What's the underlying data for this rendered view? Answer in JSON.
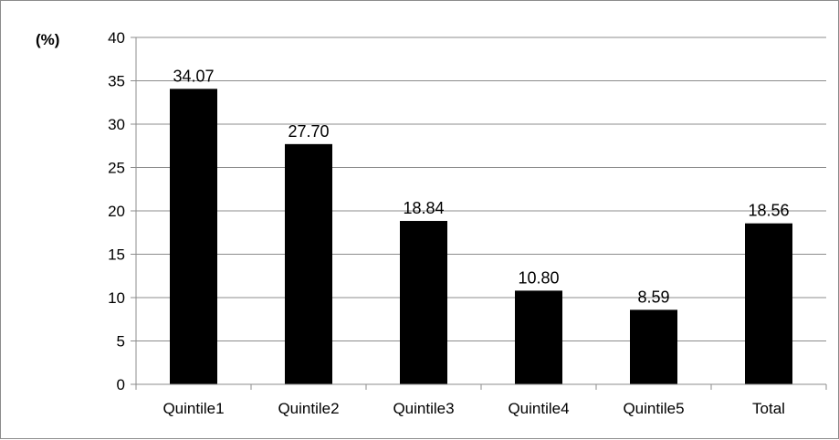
{
  "chart_data": {
    "type": "bar",
    "unit_label": "(%)",
    "categories": [
      "Quintile1",
      "Quintile2",
      "Quintile3",
      "Quintile4",
      "Quintile5",
      "Total"
    ],
    "values": [
      34.07,
      27.7,
      18.84,
      10.8,
      8.59,
      18.56
    ],
    "data_labels": [
      "34.07",
      "27.70",
      "18.84",
      "10.80",
      "8.59",
      "18.56"
    ],
    "ylim": [
      0,
      40
    ],
    "yticks": [
      0,
      5,
      10,
      15,
      20,
      25,
      30,
      35,
      40
    ],
    "grid": true,
    "legend": "none",
    "colors": {
      "bar": "#000000",
      "grid": "#8c8c8c",
      "axis": "#8c8c8c"
    }
  }
}
